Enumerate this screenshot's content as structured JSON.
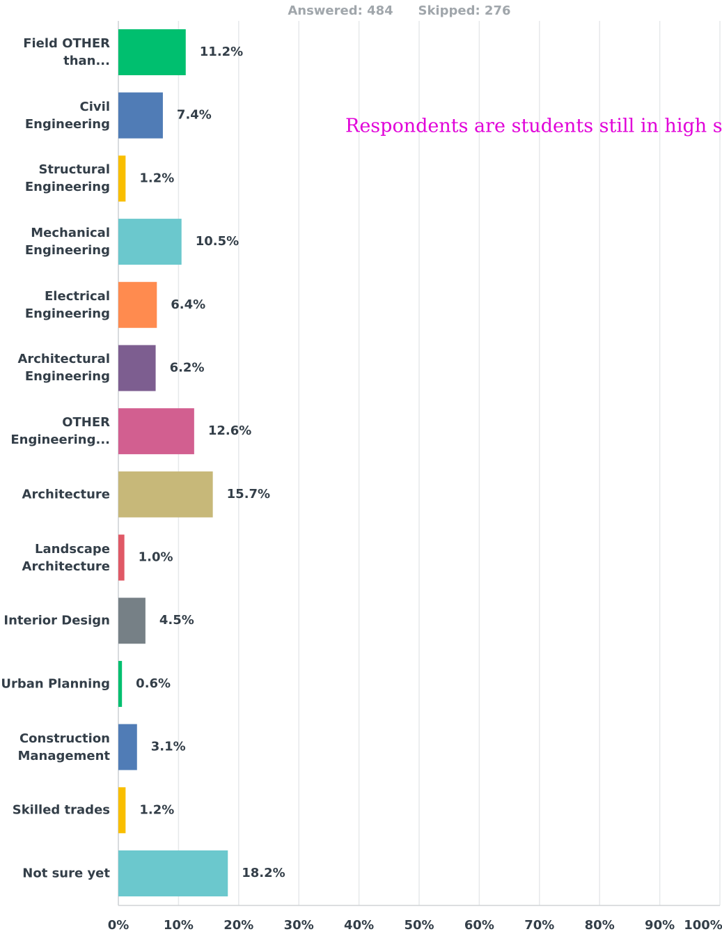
{
  "chart_data": {
    "type": "hbar",
    "answered": "Answered: 484",
    "skipped": "Skipped: 276",
    "annotation": "Respondents are students still in high scho",
    "categories": [
      "Field OTHER than...",
      "Civil Engineering",
      "Structural Engineering",
      "Mechanical Engineering",
      "Electrical Engineering",
      "Architectural Engineering",
      "OTHER Engineering...",
      "Architecture",
      "Landscape Architecture",
      "Interior Design",
      "Urban Planning",
      "Construction Management",
      "Skilled trades",
      "Not sure yet"
    ],
    "values": [
      11.2,
      7.4,
      1.2,
      10.5,
      6.4,
      6.2,
      12.6,
      15.7,
      1.0,
      4.5,
      0.6,
      3.1,
      1.2,
      18.2
    ],
    "value_labels": [
      "11.2%",
      "7.4%",
      "1.2%",
      "10.5%",
      "6.4%",
      "6.2%",
      "12.6%",
      "15.7%",
      "1.0%",
      "4.5%",
      "0.6%",
      "3.1%",
      "1.2%",
      "18.2%"
    ],
    "colors": [
      "#00bf6f",
      "#507cb6",
      "#f9be00",
      "#6bc8cd",
      "#ff8b4f",
      "#7d5e90",
      "#d25f90",
      "#c7b879",
      "#e05966",
      "#768086",
      "#00bf6f",
      "#507cb6",
      "#f9be00",
      "#6bc8cd"
    ],
    "xlim": [
      0,
      100
    ],
    "xticks": [
      {
        "value": 0,
        "label": "0%"
      },
      {
        "value": 10,
        "label": "10%"
      },
      {
        "value": 20,
        "label": "20%"
      },
      {
        "value": 30,
        "label": "30%"
      },
      {
        "value": 40,
        "label": "40%"
      },
      {
        "value": 50,
        "label": "50%"
      },
      {
        "value": 60,
        "label": "60%"
      },
      {
        "value": 70,
        "label": "70%"
      },
      {
        "value": 80,
        "label": "80%"
      },
      {
        "value": 90,
        "label": "90%"
      },
      {
        "value": 100,
        "label": "100%"
      }
    ],
    "grid": true
  }
}
